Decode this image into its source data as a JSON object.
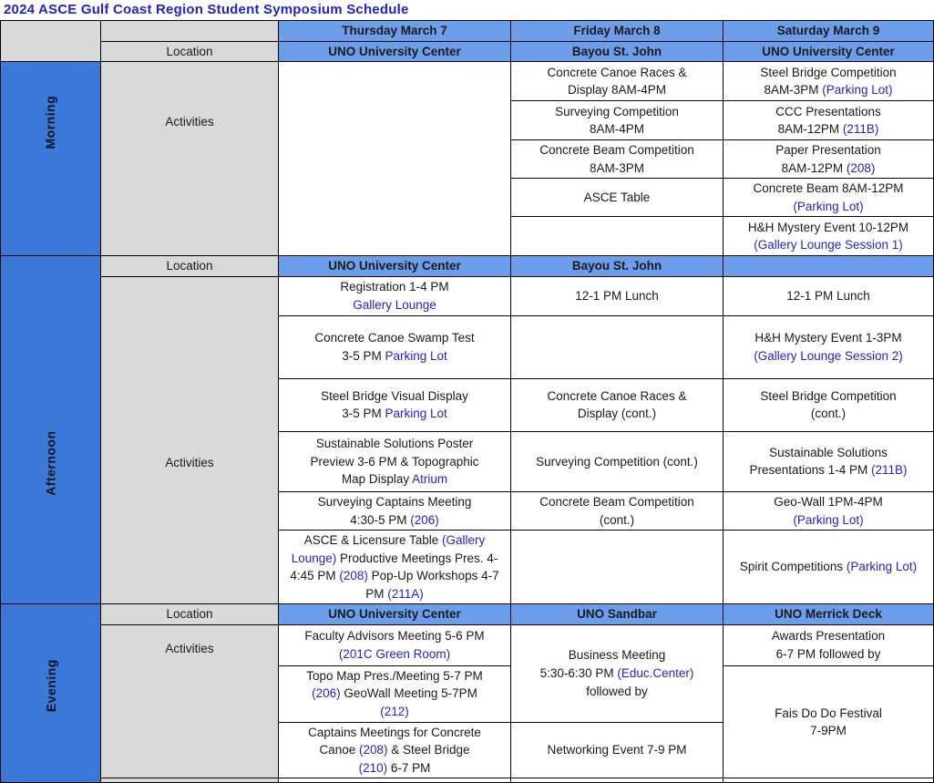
{
  "title": "2024 ASCE Gulf Coast Region Student Symposium Schedule",
  "colors": {
    "header_blue": "#6d9eeb",
    "band_blue": "#3c78d8",
    "label_gray": "#d9d9d9",
    "link_blue": "#2323cc",
    "title_blue": "#2222cc",
    "text": "#1a1a1a"
  },
  "day_headers": [
    "Thursday March 7",
    "Friday March 8",
    "Saturday March 9"
  ],
  "sections": [
    {
      "id": "morning",
      "band_label": "Morning",
      "location_label": "Location",
      "activities_label": "Activities",
      "locations": {
        "thu": "UNO University Center",
        "fri": "Bayou St. John",
        "sat": "UNO University Center"
      },
      "rows": [
        {
          "cells": [
            {
              "col": "thu",
              "rowspan": 5,
              "segments": []
            },
            {
              "col": "fri",
              "segments": [
                {
                  "t": "Concrete Canoe Races &\nDisplay 8AM-4PM"
                }
              ]
            },
            {
              "col": "sat",
              "segments": [
                {
                  "t": "Steel Bridge Competition\n8AM-3PM "
                },
                {
                  "t": "(Parking Lot)",
                  "link": true
                }
              ]
            }
          ]
        },
        {
          "cells": [
            {
              "col": "fri",
              "segments": [
                {
                  "t": "Surveying Competition\n8AM-4PM"
                }
              ]
            },
            {
              "col": "sat",
              "segments": [
                {
                  "t": "CCC Presentations\n8AM-12PM "
                },
                {
                  "t": "(211B)",
                  "link": true
                }
              ]
            }
          ]
        },
        {
          "cells": [
            {
              "col": "fri",
              "segments": [
                {
                  "t": "Concrete Beam Competition\n8AM-3PM"
                }
              ]
            },
            {
              "col": "sat",
              "segments": [
                {
                  "t": "Paper Presentation\n8AM-12PM "
                },
                {
                  "t": "(208)",
                  "link": true
                }
              ]
            }
          ]
        },
        {
          "cells": [
            {
              "col": "fri",
              "segments": [
                {
                  "t": "ASCE Table"
                }
              ]
            },
            {
              "col": "sat",
              "segments": [
                {
                  "t": "Concrete Beam 8AM-12PM\n"
                },
                {
                  "t": "(Parking Lot)",
                  "link": true
                }
              ]
            }
          ]
        },
        {
          "cells": [
            {
              "col": "fri",
              "segments": []
            },
            {
              "col": "sat",
              "segments": [
                {
                  "t": "H&H Mystery Event 10-12PM\n"
                },
                {
                  "t": "(Gallery Lounge Session 1)",
                  "link": true
                }
              ]
            }
          ]
        }
      ]
    },
    {
      "id": "afternoon",
      "band_label": "Afternoon",
      "location_label": "Location",
      "activities_label": "Activities",
      "locations": {
        "thu": "UNO University Center",
        "fri": "Bayou St. John",
        "sat": ""
      },
      "rows": [
        {
          "cells": [
            {
              "col": "thu",
              "segments": [
                {
                  "t": "Registration 1-4 PM\n"
                },
                {
                  "t": "Gallery Lounge",
                  "link": true
                }
              ]
            },
            {
              "col": "fri",
              "segments": [
                {
                  "t": "12-1 PM Lunch"
                }
              ]
            },
            {
              "col": "sat",
              "segments": [
                {
                  "t": "12-1 PM Lunch"
                }
              ]
            }
          ]
        },
        {
          "cells": [
            {
              "col": "thu",
              "segments": [
                {
                  "t": "Concrete Canoe Swamp Test\n3-5 PM  "
                },
                {
                  "t": "Parking Lot",
                  "link": true
                }
              ]
            },
            {
              "col": "fri",
              "segments": []
            },
            {
              "col": "sat",
              "segments": [
                {
                  "t": "H&H Mystery Event 1-3PM\n"
                },
                {
                  "t": "(Gallery Lounge Session 2)",
                  "link": true
                }
              ]
            }
          ]
        },
        {
          "cells": [
            {
              "col": "thu",
              "segments": [
                {
                  "t": "Steel Bridge Visual Display\n3-5 PM "
                },
                {
                  "t": "Parking Lot",
                  "link": true
                }
              ]
            },
            {
              "col": "fri",
              "segments": [
                {
                  "t": "Concrete Canoe Races &\nDisplay (cont.)"
                }
              ]
            },
            {
              "col": "sat",
              "segments": [
                {
                  "t": "Steel Bridge Competition\n(cont.)"
                }
              ]
            }
          ]
        },
        {
          "cells": [
            {
              "col": "thu",
              "segments": [
                {
                  "t": "Sustainable Solutions Poster\nPreview 3-6 PM & Topographic\nMap Display "
                },
                {
                  "t": "Atrium",
                  "link": true
                }
              ]
            },
            {
              "col": "fri",
              "segments": [
                {
                  "t": "Surveying Competition (cont.)"
                }
              ]
            },
            {
              "col": "sat",
              "segments": [
                {
                  "t": "Sustainable Solutions\nPresentations 1-4 PM "
                },
                {
                  "t": "(211B)",
                  "link": true
                }
              ]
            }
          ]
        },
        {
          "cells": [
            {
              "col": "thu",
              "segments": [
                {
                  "t": "Surveying Captains Meeting\n4:30-5 PM "
                },
                {
                  "t": "(206)",
                  "link": true
                }
              ]
            },
            {
              "col": "fri",
              "segments": [
                {
                  "t": "Concrete Beam Competition\n(cont.)"
                }
              ]
            },
            {
              "col": "sat",
              "segments": [
                {
                  "t": "Geo-Wall 1PM-4PM\n"
                },
                {
                  "t": "(Parking Lot)",
                  "link": true
                }
              ]
            }
          ]
        },
        {
          "cells": [
            {
              "col": "thu",
              "segments": [
                {
                  "t": "ASCE & Licensure Table "
                },
                {
                  "t": "(Gallery Lounge)",
                  "link": true
                },
                {
                  "t": " Productive Meetings Pres. 4-4:45 PM "
                },
                {
                  "t": "(208)",
                  "link": true
                },
                {
                  "t": " Pop-Up Workshops 4-7 PM "
                },
                {
                  "t": "(211A)",
                  "link": true
                }
              ]
            },
            {
              "col": "fri",
              "segments": []
            },
            {
              "col": "sat",
              "segments": [
                {
                  "t": "Spirit Competitions "
                },
                {
                  "t": "(Parking Lot)",
                  "link": true
                }
              ]
            }
          ]
        }
      ]
    },
    {
      "id": "evening",
      "band_label": "Evening",
      "location_label": "Location",
      "activities_label": "Activities",
      "locations": {
        "thu": "UNO University Center",
        "fri": "UNO Sandbar",
        "sat": "UNO Merrick Deck"
      },
      "rows": [
        {
          "cells": [
            {
              "col": "thu",
              "segments": [
                {
                  "t": "Faculty Advisors Meeting 5-6 PM\n"
                },
                {
                  "t": "(201C Green Room)",
                  "link": true
                }
              ]
            },
            {
              "col": "fri",
              "rowspan": 2,
              "segments": [
                {
                  "t": "Business Meeting\n5:30-6:30 PM "
                },
                {
                  "t": "(Educ.Center)",
                  "link": true
                },
                {
                  "t": "\nfollowed by"
                }
              ]
            },
            {
              "col": "sat",
              "segments": [
                {
                  "t": "Awards Presentation\n6-7 PM followed by"
                }
              ]
            }
          ]
        },
        {
          "cells": [
            {
              "col": "thu",
              "segments": [
                {
                  "t": "Topo Map Pres./Meeting 5-7 PM\n"
                },
                {
                  "t": "(206)",
                  "link": true
                },
                {
                  "t": " GeoWall Meeting 5-7PM\n"
                },
                {
                  "t": "(212)",
                  "link": true
                }
              ]
            },
            {
              "col": "sat",
              "rowspan": 2,
              "segments": [
                {
                  "t": "Fais Do Do Festival\n7-9PM"
                }
              ]
            }
          ]
        },
        {
          "cells": [
            {
              "col": "thu",
              "segments": [
                {
                  "t": "Captains Meetings for Concrete\nCanoe "
                },
                {
                  "t": "(208)",
                  "link": true
                },
                {
                  "t": " & Steel Bridge\n"
                },
                {
                  "t": "(210)",
                  "link": true
                },
                {
                  "t": " 6-7 PM"
                }
              ]
            },
            {
              "col": "fri",
              "segments": [
                {
                  "t": "Networking Event 7-9 PM"
                }
              ]
            }
          ]
        }
      ]
    }
  ]
}
